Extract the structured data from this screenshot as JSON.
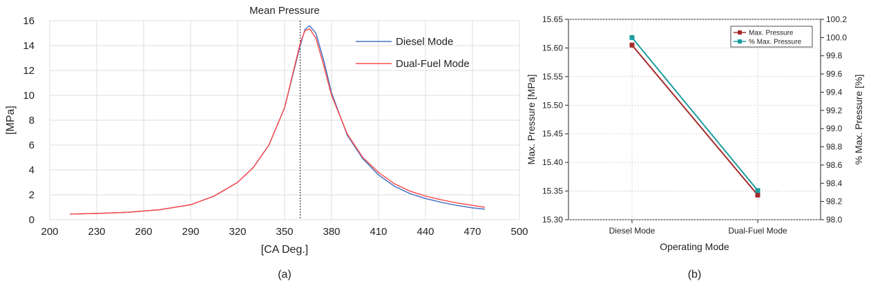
{
  "chart_data": [
    {
      "panel_label": "(a)",
      "type": "line",
      "title": "Mean Pressure",
      "xlabel": "[CA Deg.]",
      "ylabel": "[MPa]",
      "xlim": [
        200,
        500
      ],
      "ylim": [
        0,
        16
      ],
      "xticks": [
        "200",
        "230",
        "260",
        "290",
        "320",
        "350",
        "380",
        "410",
        "440",
        "470",
        "500"
      ],
      "yticks": [
        "0",
        "2",
        "4",
        "6",
        "8",
        "10",
        "12",
        "14",
        "16"
      ],
      "grid": true,
      "reference_line_x": 360,
      "legend_position": "top-right",
      "series": [
        {
          "name": "Diesel Mode",
          "color": "#4472c4",
          "points": [
            [
              213,
              0.45
            ],
            [
              230,
              0.5
            ],
            [
              250,
              0.6
            ],
            [
              270,
              0.8
            ],
            [
              290,
              1.2
            ],
            [
              305,
              1.9
            ],
            [
              320,
              3.0
            ],
            [
              330,
              4.2
            ],
            [
              340,
              6.0
            ],
            [
              350,
              9.0
            ],
            [
              355,
              11.5
            ],
            [
              360,
              14.0
            ],
            [
              363,
              15.3
            ],
            [
              366,
              15.6
            ],
            [
              370,
              15.0
            ],
            [
              375,
              12.8
            ],
            [
              380,
              10.2
            ],
            [
              390,
              6.8
            ],
            [
              400,
              4.9
            ],
            [
              410,
              3.6
            ],
            [
              420,
              2.7
            ],
            [
              430,
              2.1
            ],
            [
              440,
              1.7
            ],
            [
              450,
              1.4
            ],
            [
              460,
              1.15
            ],
            [
              470,
              0.95
            ],
            [
              478,
              0.85
            ]
          ]
        },
        {
          "name": "Dual-Fuel Mode",
          "color": "#ff4d4d",
          "points": [
            [
              213,
              0.45
            ],
            [
              230,
              0.5
            ],
            [
              250,
              0.6
            ],
            [
              270,
              0.8
            ],
            [
              290,
              1.2
            ],
            [
              305,
              1.9
            ],
            [
              320,
              3.0
            ],
            [
              330,
              4.2
            ],
            [
              340,
              6.0
            ],
            [
              350,
              9.0
            ],
            [
              355,
              11.6
            ],
            [
              360,
              14.2
            ],
            [
              363,
              15.2
            ],
            [
              366,
              15.35
            ],
            [
              370,
              14.6
            ],
            [
              375,
              12.4
            ],
            [
              380,
              10.0
            ],
            [
              390,
              6.9
            ],
            [
              400,
              5.0
            ],
            [
              410,
              3.8
            ],
            [
              420,
              2.9
            ],
            [
              430,
              2.3
            ],
            [
              440,
              1.9
            ],
            [
              450,
              1.6
            ],
            [
              460,
              1.35
            ],
            [
              470,
              1.15
            ],
            [
              478,
              1.0
            ]
          ]
        }
      ]
    },
    {
      "panel_label": "(b)",
      "type": "line",
      "xlabel": "Operating Mode",
      "ylabel": "Max. Pressure [MPa]",
      "y2label": "% Max. Pressure [%]",
      "categories": [
        "Diesel Mode",
        "Dual-Fuel Mode"
      ],
      "ylim": [
        15.3,
        15.65
      ],
      "y2lim": [
        98.0,
        100.2
      ],
      "yticks": [
        "15.30",
        "15.35",
        "15.40",
        "15.45",
        "15.50",
        "15.55",
        "15.60",
        "15.65"
      ],
      "y2ticks": [
        "98.0",
        "98.2",
        "98.4",
        "98.6",
        "98.8",
        "99.0",
        "99.2",
        "99.4",
        "99.6",
        "99.8",
        "100.0",
        "100.2"
      ],
      "grid": true,
      "legend_position": "top-right",
      "series": [
        {
          "name": "Max. Pressure",
          "axis": "left",
          "color": "#a52a2a",
          "values": [
            15.605,
            15.343
          ]
        },
        {
          "name": "% Max. Pressure",
          "axis": "right",
          "color": "#1a9c9c",
          "values": [
            100.0,
            98.32
          ]
        }
      ]
    }
  ]
}
